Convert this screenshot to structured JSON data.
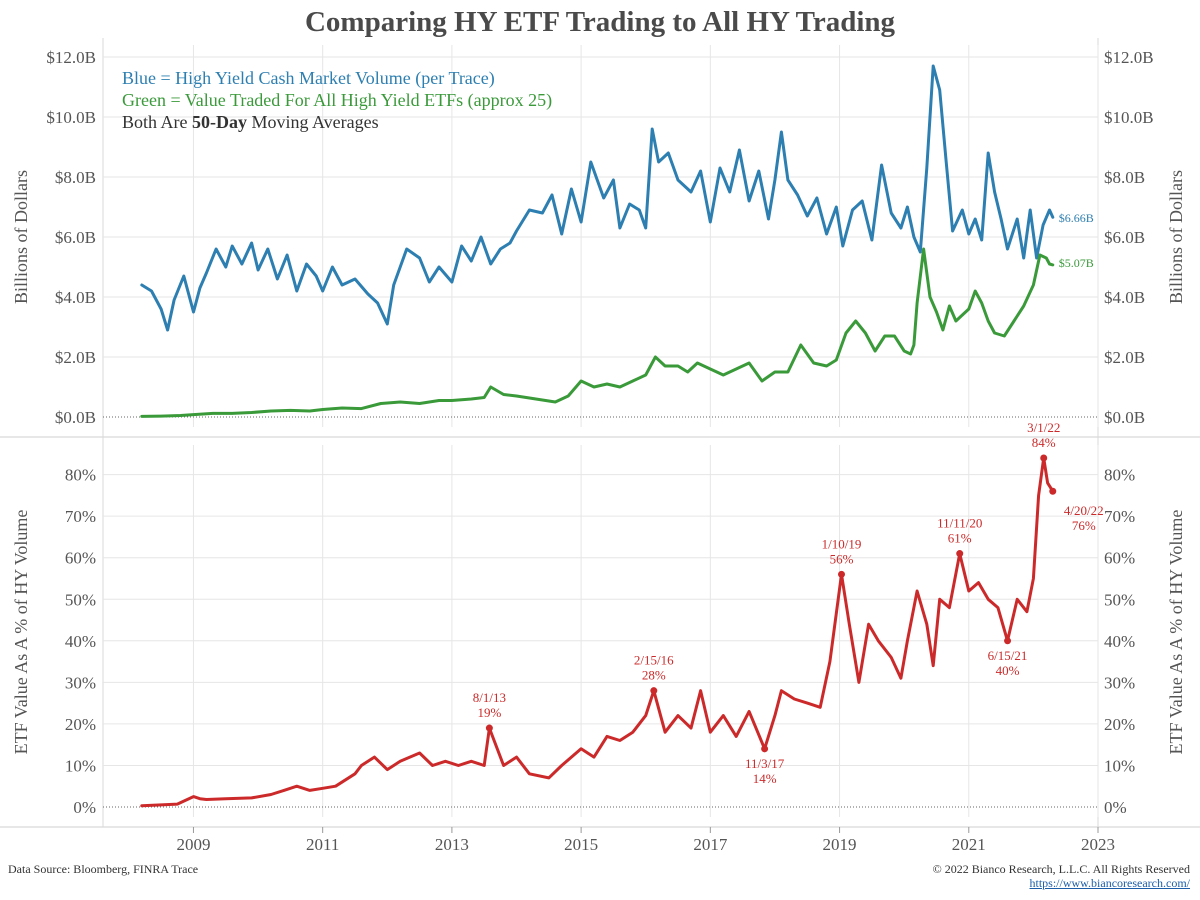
{
  "title": "Comparing HY ETF Trading to All HY Trading",
  "legend": {
    "blue": "Blue = High Yield Cash Market Volume (per Trace)",
    "green": "Green = Value Traded For All High Yield ETFs (approx 25)",
    "black_prefix": "Both Are ",
    "black_bold": "50-Day",
    "black_suffix": " Moving Averages"
  },
  "colors": {
    "blue": "#2d7fb1",
    "green": "#3a9a3a",
    "red": "#cc2a2a",
    "grid": "#e6e6e6",
    "axis_text": "#555555"
  },
  "footer": {
    "source": "Data Source: Bloomberg, FINRA Trace",
    "copyright": "© 2022 Bianco Research, L.L.C. All Rights Reserved",
    "url": "https://www.biancoresearch.com/"
  },
  "chart_data": [
    {
      "type": "line",
      "ylabel": "Billions of Dollars",
      "ylim": [
        0,
        12
      ],
      "yticks": [
        "$0.0B",
        "$2.0B",
        "$4.0B",
        "$6.0B",
        "$8.0B",
        "$10.0B",
        "$12.0B"
      ],
      "ytick_values": [
        0,
        2,
        4,
        6,
        8,
        10,
        12
      ],
      "grid": true,
      "series": [
        {
          "name": "High Yield Cash Market Volume (per Trace)",
          "color": "#2d7fb1",
          "end_label": "$6.66B",
          "x": [
            2008.2,
            2008.35,
            2008.5,
            2008.6,
            2008.7,
            2008.85,
            2009.0,
            2009.1,
            2009.2,
            2009.35,
            2009.5,
            2009.6,
            2009.75,
            2009.9,
            2010.0,
            2010.15,
            2010.3,
            2010.45,
            2010.6,
            2010.75,
            2010.9,
            2011.0,
            2011.15,
            2011.3,
            2011.5,
            2011.7,
            2011.85,
            2012.0,
            2012.1,
            2012.3,
            2012.5,
            2012.65,
            2012.8,
            2013.0,
            2013.15,
            2013.3,
            2013.45,
            2013.6,
            2013.75,
            2013.9,
            2014.0,
            2014.2,
            2014.4,
            2014.55,
            2014.7,
            2014.85,
            2015.0,
            2015.15,
            2015.35,
            2015.5,
            2015.6,
            2015.75,
            2015.9,
            2016.0,
            2016.1,
            2016.2,
            2016.35,
            2016.5,
            2016.7,
            2016.85,
            2017.0,
            2017.15,
            2017.3,
            2017.45,
            2017.6,
            2017.75,
            2017.9,
            2018.0,
            2018.1,
            2018.2,
            2018.35,
            2018.5,
            2018.65,
            2018.8,
            2018.95,
            2019.05,
            2019.2,
            2019.35,
            2019.5,
            2019.65,
            2019.8,
            2019.95,
            2020.05,
            2020.15,
            2020.25,
            2020.35,
            2020.45,
            2020.55,
            2020.65,
            2020.75,
            2020.9,
            2021.0,
            2021.1,
            2021.2,
            2021.3,
            2021.4,
            2021.5,
            2021.6,
            2021.75,
            2021.85,
            2021.95,
            2022.05,
            2022.15,
            2022.25,
            2022.3
          ],
          "y": [
            4.4,
            4.2,
            3.6,
            2.9,
            3.9,
            4.7,
            3.5,
            4.3,
            4.8,
            5.6,
            5.0,
            5.7,
            5.1,
            5.8,
            4.9,
            5.6,
            4.6,
            5.4,
            4.2,
            5.1,
            4.7,
            4.2,
            5.0,
            4.4,
            4.6,
            4.1,
            3.8,
            3.1,
            4.4,
            5.6,
            5.3,
            4.5,
            5.0,
            4.5,
            5.7,
            5.2,
            6.0,
            5.1,
            5.6,
            5.8,
            6.2,
            6.9,
            6.8,
            7.4,
            6.1,
            7.6,
            6.5,
            8.5,
            7.3,
            7.9,
            6.3,
            7.1,
            6.9,
            6.3,
            9.6,
            8.5,
            8.8,
            7.9,
            7.5,
            8.2,
            6.5,
            8.3,
            7.5,
            8.9,
            7.2,
            8.2,
            6.6,
            7.9,
            9.5,
            7.9,
            7.4,
            6.7,
            7.3,
            6.1,
            7.0,
            5.7,
            6.9,
            7.2,
            5.9,
            8.4,
            6.8,
            6.3,
            7.0,
            6.0,
            5.5,
            8.3,
            11.7,
            10.9,
            8.5,
            6.2,
            6.9,
            6.1,
            6.6,
            5.9,
            8.8,
            7.5,
            6.6,
            5.6,
            6.6,
            5.3,
            6.9,
            5.3,
            6.4,
            6.9,
            6.66
          ]
        },
        {
          "name": "Value Traded For All High Yield ETFs (approx 25)",
          "color": "#3a9a3a",
          "end_label": "$5.07B",
          "x": [
            2008.2,
            2008.5,
            2008.8,
            2009.0,
            2009.3,
            2009.6,
            2009.9,
            2010.2,
            2010.5,
            2010.8,
            2011.0,
            2011.3,
            2011.6,
            2011.9,
            2012.2,
            2012.5,
            2012.8,
            2013.0,
            2013.3,
            2013.5,
            2013.6,
            2013.8,
            2014.0,
            2014.3,
            2014.6,
            2014.8,
            2015.0,
            2015.2,
            2015.4,
            2015.6,
            2015.8,
            2016.0,
            2016.15,
            2016.3,
            2016.5,
            2016.65,
            2016.8,
            2017.0,
            2017.2,
            2017.4,
            2017.6,
            2017.8,
            2018.0,
            2018.2,
            2018.4,
            2018.6,
            2018.8,
            2018.95,
            2019.1,
            2019.25,
            2019.4,
            2019.55,
            2019.7,
            2019.85,
            2020.0,
            2020.1,
            2020.15,
            2020.2,
            2020.3,
            2020.4,
            2020.5,
            2020.6,
            2020.7,
            2020.8,
            2021.0,
            2021.1,
            2021.2,
            2021.3,
            2021.4,
            2021.55,
            2021.7,
            2021.85,
            2022.0,
            2022.1,
            2022.2,
            2022.25,
            2022.3
          ],
          "y": [
            0.02,
            0.03,
            0.05,
            0.08,
            0.12,
            0.12,
            0.15,
            0.2,
            0.22,
            0.2,
            0.25,
            0.3,
            0.28,
            0.45,
            0.5,
            0.45,
            0.55,
            0.55,
            0.6,
            0.65,
            1.0,
            0.75,
            0.7,
            0.6,
            0.5,
            0.7,
            1.2,
            1.0,
            1.1,
            1.0,
            1.2,
            1.4,
            2.0,
            1.7,
            1.7,
            1.5,
            1.8,
            1.6,
            1.4,
            1.6,
            1.8,
            1.2,
            1.5,
            1.5,
            2.4,
            1.8,
            1.7,
            1.9,
            2.8,
            3.2,
            2.8,
            2.2,
            2.7,
            2.7,
            2.2,
            2.1,
            2.4,
            3.8,
            5.6,
            4.0,
            3.5,
            2.9,
            3.7,
            3.2,
            3.6,
            4.2,
            3.8,
            3.2,
            2.8,
            2.7,
            3.2,
            3.7,
            4.4,
            5.4,
            5.3,
            5.1,
            5.07
          ]
        }
      ]
    },
    {
      "type": "line",
      "ylabel": "ETF Value As A % of HY Volume",
      "ylim": [
        0,
        84
      ],
      "yticks": [
        "0%",
        "10%",
        "20%",
        "30%",
        "40%",
        "50%",
        "60%",
        "70%",
        "80%"
      ],
      "ytick_values": [
        0,
        10,
        20,
        30,
        40,
        50,
        60,
        70,
        80
      ],
      "xlabels": [
        "2009",
        "2011",
        "2013",
        "2015",
        "2017",
        "2019",
        "2021",
        "2023"
      ],
      "xtick_values": [
        2009,
        2011,
        2013,
        2015,
        2017,
        2019,
        2021,
        2023
      ],
      "xlim": [
        2007.6,
        2023.0
      ],
      "grid": true,
      "series": [
        {
          "name": "ETF Value As A % of HY Volume",
          "color": "#cc2a2a",
          "x": [
            2008.2,
            2008.5,
            2008.75,
            2009.0,
            2009.1,
            2009.2,
            2009.5,
            2009.9,
            2010.2,
            2010.4,
            2010.6,
            2010.8,
            2011.0,
            2011.2,
            2011.5,
            2011.6,
            2011.8,
            2012.0,
            2012.2,
            2012.5,
            2012.7,
            2012.9,
            2013.1,
            2013.3,
            2013.5,
            2013.58,
            2013.8,
            2014.0,
            2014.2,
            2014.5,
            2014.7,
            2015.0,
            2015.2,
            2015.4,
            2015.6,
            2015.8,
            2016.0,
            2016.125,
            2016.3,
            2016.5,
            2016.7,
            2016.85,
            2017.0,
            2017.2,
            2017.4,
            2017.6,
            2017.84,
            2018.0,
            2018.1,
            2018.3,
            2018.5,
            2018.7,
            2018.85,
            2019.03,
            2019.15,
            2019.3,
            2019.45,
            2019.6,
            2019.8,
            2019.95,
            2020.05,
            2020.2,
            2020.35,
            2020.45,
            2020.55,
            2020.7,
            2020.86,
            2021.0,
            2021.15,
            2021.3,
            2021.45,
            2021.6,
            2021.75,
            2021.9,
            2022.0,
            2022.08,
            2022.16,
            2022.22,
            2022.3
          ],
          "y": [
            0.3,
            0.5,
            0.7,
            2.5,
            2.0,
            1.8,
            2.0,
            2.2,
            3.0,
            4.0,
            5.0,
            4.0,
            4.5,
            5.0,
            8.0,
            10.0,
            12.0,
            9.0,
            11.0,
            13.0,
            10.0,
            11.0,
            10.0,
            11.0,
            10.0,
            19.0,
            10.0,
            12.0,
            8.0,
            7.0,
            10.0,
            14.0,
            12.0,
            17.0,
            16.0,
            18.0,
            22.0,
            28.0,
            18.0,
            22.0,
            19.0,
            28.0,
            18.0,
            22.0,
            17.0,
            23.0,
            14.0,
            22.0,
            28.0,
            26.0,
            25.0,
            24.0,
            35.0,
            56.0,
            44.0,
            30.0,
            44.0,
            40.0,
            36.0,
            31.0,
            40.0,
            52.0,
            44.0,
            34.0,
            50.0,
            48.0,
            61.0,
            52.0,
            54.0,
            50.0,
            48.0,
            40.0,
            50.0,
            47.0,
            55.0,
            75.0,
            84.0,
            78.0,
            76.0
          ]
        }
      ],
      "annotations": [
        {
          "date": "8/1/13",
          "value": "19%",
          "x": 2013.58,
          "y": 19.0
        },
        {
          "date": "2/15/16",
          "value": "28%",
          "x": 2016.125,
          "y": 28.0
        },
        {
          "date": "11/3/17",
          "value": "14%",
          "x": 2017.84,
          "y": 14.0
        },
        {
          "date": "1/10/19",
          "value": "56%",
          "x": 2019.03,
          "y": 56.0
        },
        {
          "date": "11/11/20",
          "value": "61%",
          "x": 2020.86,
          "y": 61.0
        },
        {
          "date": "6/15/21",
          "value": "40%",
          "x": 2021.6,
          "y": 40.0
        },
        {
          "date": "3/1/22",
          "value": "84%",
          "x": 2022.16,
          "y": 84.0
        },
        {
          "date": "4/20/22",
          "value": "76%",
          "x": 2022.3,
          "y": 76.0
        }
      ]
    }
  ]
}
